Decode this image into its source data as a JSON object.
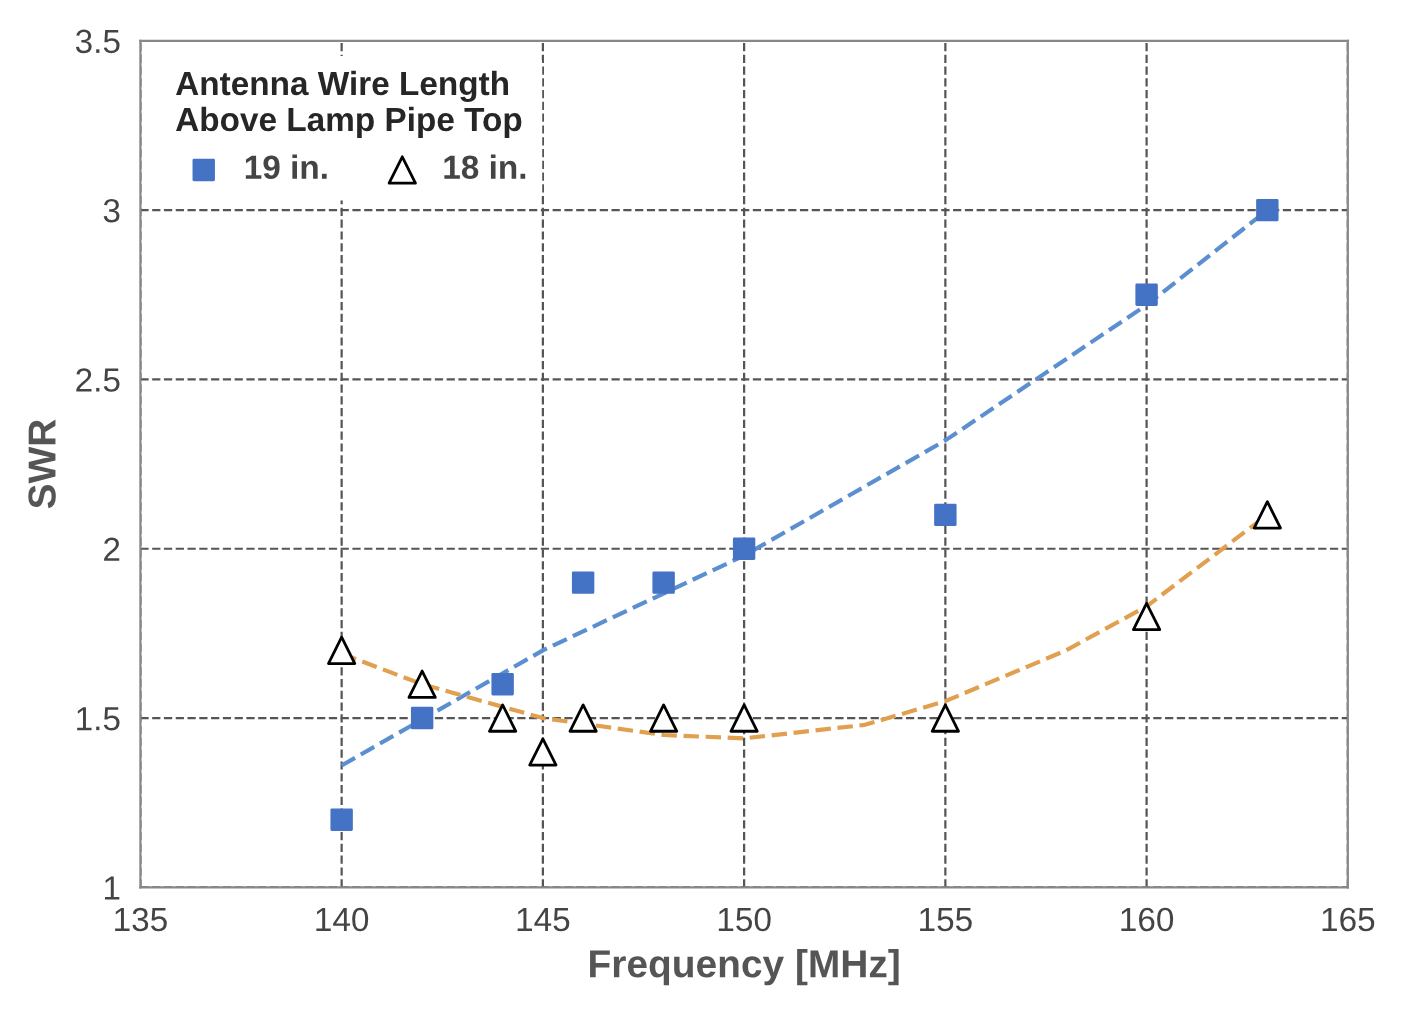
{
  "chart_data": {
    "type": "scatter",
    "xlabel": "Frequency [MHz]",
    "ylabel": "SWR",
    "legend_title": "Antenna Wire Length\nAbove Lamp Pipe Top",
    "xlim": [
      135,
      165
    ],
    "xticks": [
      135,
      140,
      145,
      150,
      155,
      160,
      165
    ],
    "ylim": [
      1,
      3.5
    ],
    "yticks": [
      1,
      1.5,
      2,
      2.5,
      3,
      3.5
    ],
    "grid": true,
    "legend": "top left",
    "series": [
      {
        "name": "19 in.",
        "color": "#4472c4",
        "marker": "square",
        "x": [
          140,
          142,
          144,
          146,
          148,
          150,
          155,
          160,
          163
        ],
        "values": [
          1.2,
          1.5,
          1.6,
          1.9,
          1.9,
          2.0,
          2.1,
          2.75,
          3.0
        ]
      },
      {
        "name": "18 in.",
        "color": "#000000",
        "marker": "triangle",
        "x": [
          140,
          142,
          144,
          145,
          146,
          148,
          150,
          155,
          160,
          163
        ],
        "values": [
          1.7,
          1.6,
          1.5,
          1.4,
          1.5,
          1.5,
          1.5,
          1.5,
          1.8,
          2.1
        ]
      },
      {
        "type": "line",
        "color": "#5b8fd0",
        "line_style": "dashed",
        "x": [
          140,
          145,
          150,
          155,
          160,
          163
        ],
        "values": [
          1.36,
          1.7,
          1.98,
          2.32,
          2.72,
          3.0
        ]
      },
      {
        "type": "line",
        "color": "#e0a050",
        "line_style": "dashed",
        "x": [
          140,
          142,
          145,
          148,
          150,
          153,
          155,
          158,
          160,
          163
        ],
        "values": [
          1.69,
          1.6,
          1.5,
          1.45,
          1.44,
          1.48,
          1.55,
          1.7,
          1.83,
          2.1
        ]
      }
    ]
  }
}
